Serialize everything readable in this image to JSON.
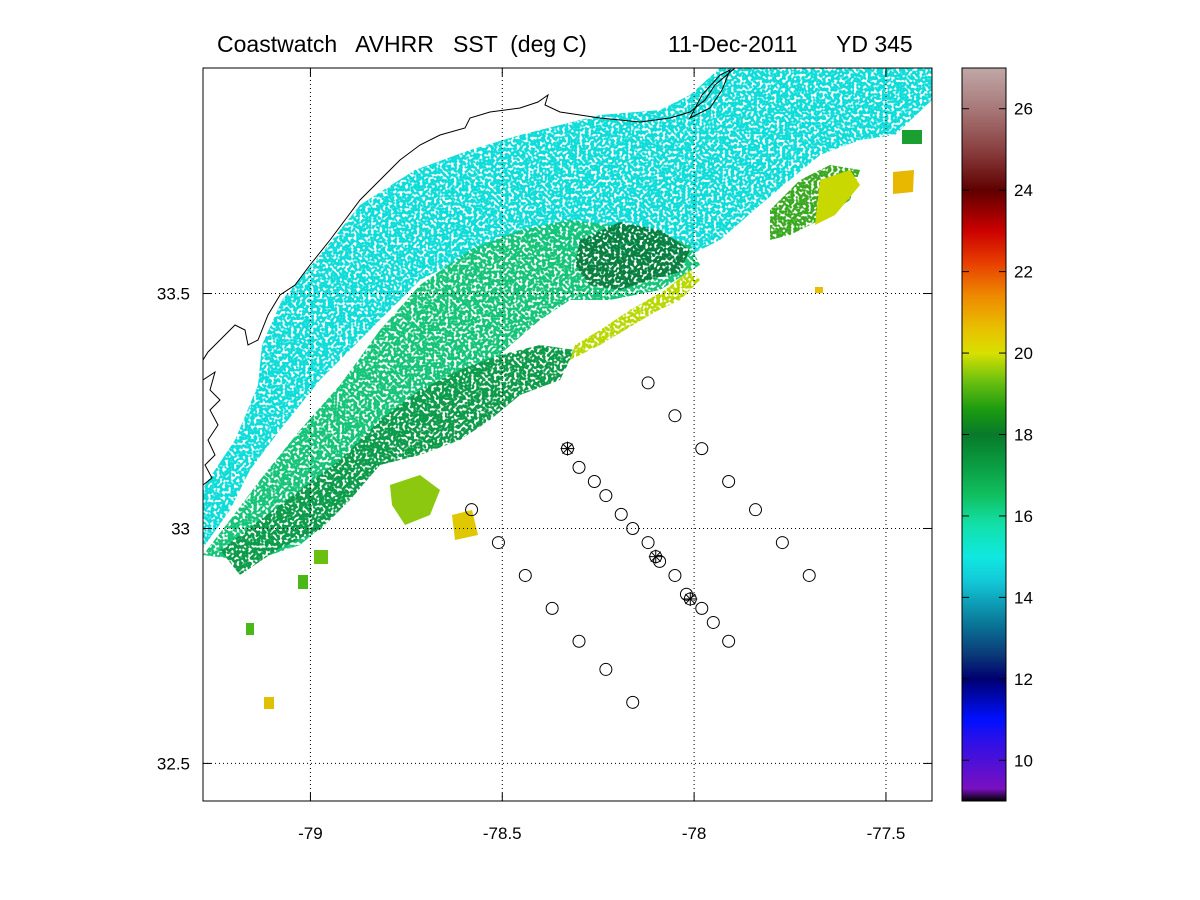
{
  "title": {
    "left": "Coastwatch   AVHRR   SST  (deg C)",
    "date": "11-Dec-2011",
    "yearday": "YD 345"
  },
  "map": {
    "lon_range": [
      -79.28,
      -77.38
    ],
    "lat_range": [
      32.42,
      33.98
    ],
    "x_ticks": [
      -79,
      -78.5,
      -78,
      -77.5
    ],
    "x_tick_labels": [
      "-79",
      "-78.5",
      "-78",
      "-77.5"
    ],
    "y_ticks": [
      33.5,
      33,
      32.5
    ],
    "y_tick_labels": [
      "33.5",
      "33",
      "32.5"
    ],
    "grid": "dotted",
    "coastline_color": "#000000",
    "stations": [
      {
        "lon": -78.12,
        "lat": 33.31,
        "type": "circle"
      },
      {
        "lon": -78.05,
        "lat": 33.24,
        "type": "circle"
      },
      {
        "lon": -77.98,
        "lat": 33.17,
        "type": "circle"
      },
      {
        "lon": -77.91,
        "lat": 33.1,
        "type": "circle"
      },
      {
        "lon": -77.84,
        "lat": 33.04,
        "type": "circle"
      },
      {
        "lon": -77.77,
        "lat": 32.97,
        "type": "circle"
      },
      {
        "lon": -77.7,
        "lat": 32.9,
        "type": "circle"
      },
      {
        "lon": -78.33,
        "lat": 33.17,
        "type": "star"
      },
      {
        "lon": -78.3,
        "lat": 33.13,
        "type": "circle"
      },
      {
        "lon": -78.26,
        "lat": 33.1,
        "type": "circle"
      },
      {
        "lon": -78.23,
        "lat": 33.07,
        "type": "circle"
      },
      {
        "lon": -78.19,
        "lat": 33.03,
        "type": "circle"
      },
      {
        "lon": -78.16,
        "lat": 33.0,
        "type": "circle"
      },
      {
        "lon": -78.12,
        "lat": 32.97,
        "type": "circle"
      },
      {
        "lon": -78.1,
        "lat": 32.94,
        "type": "star"
      },
      {
        "lon": -78.09,
        "lat": 32.93,
        "type": "circle"
      },
      {
        "lon": -78.05,
        "lat": 32.9,
        "type": "circle"
      },
      {
        "lon": -78.02,
        "lat": 32.86,
        "type": "circle"
      },
      {
        "lon": -78.01,
        "lat": 32.85,
        "type": "star"
      },
      {
        "lon": -77.98,
        "lat": 32.83,
        "type": "circle"
      },
      {
        "lon": -77.95,
        "lat": 32.8,
        "type": "circle"
      },
      {
        "lon": -77.91,
        "lat": 32.76,
        "type": "circle"
      },
      {
        "lon": -78.58,
        "lat": 33.04,
        "type": "circle"
      },
      {
        "lon": -78.51,
        "lat": 32.97,
        "type": "circle"
      },
      {
        "lon": -78.44,
        "lat": 32.9,
        "type": "circle"
      },
      {
        "lon": -78.37,
        "lat": 32.83,
        "type": "circle"
      },
      {
        "lon": -78.3,
        "lat": 32.76,
        "type": "circle"
      },
      {
        "lon": -78.23,
        "lat": 32.7,
        "type": "circle"
      },
      {
        "lon": -78.16,
        "lat": 32.63,
        "type": "circle"
      }
    ]
  },
  "colorbar": {
    "range": [
      9,
      27
    ],
    "ticks": [
      10,
      12,
      14,
      16,
      18,
      20,
      22,
      24,
      26
    ],
    "tick_labels": [
      "10",
      "12",
      "14",
      "16",
      "18",
      "20",
      "22",
      "24",
      "26"
    ],
    "stops": [
      {
        "value": 9.0,
        "color": "#000000"
      },
      {
        "value": 9.3,
        "color": "#7a10c0"
      },
      {
        "value": 10.5,
        "color": "#2a10e8"
      },
      {
        "value": 11.0,
        "color": "#0010ff"
      },
      {
        "value": 12.0,
        "color": "#000070"
      },
      {
        "value": 12.6,
        "color": "#0a3a78"
      },
      {
        "value": 13.4,
        "color": "#0a7a9a"
      },
      {
        "value": 14.4,
        "color": "#12c8d8"
      },
      {
        "value": 15.0,
        "color": "#10e8e0"
      },
      {
        "value": 15.8,
        "color": "#12e0a8"
      },
      {
        "value": 16.5,
        "color": "#10c060"
      },
      {
        "value": 17.3,
        "color": "#0a9a40"
      },
      {
        "value": 18.0,
        "color": "#087a2a"
      },
      {
        "value": 18.6,
        "color": "#1a9a10"
      },
      {
        "value": 19.3,
        "color": "#6ac010"
      },
      {
        "value": 20.0,
        "color": "#d8e000"
      },
      {
        "value": 20.6,
        "color": "#e8c000"
      },
      {
        "value": 21.4,
        "color": "#ee8a00"
      },
      {
        "value": 22.2,
        "color": "#e84000"
      },
      {
        "value": 23.0,
        "color": "#cc0000"
      },
      {
        "value": 24.0,
        "color": "#600000"
      },
      {
        "value": 25.0,
        "color": "#8a4040"
      },
      {
        "value": 26.0,
        "color": "#a87878"
      },
      {
        "value": 27.0,
        "color": "#c0a8a8"
      }
    ]
  }
}
